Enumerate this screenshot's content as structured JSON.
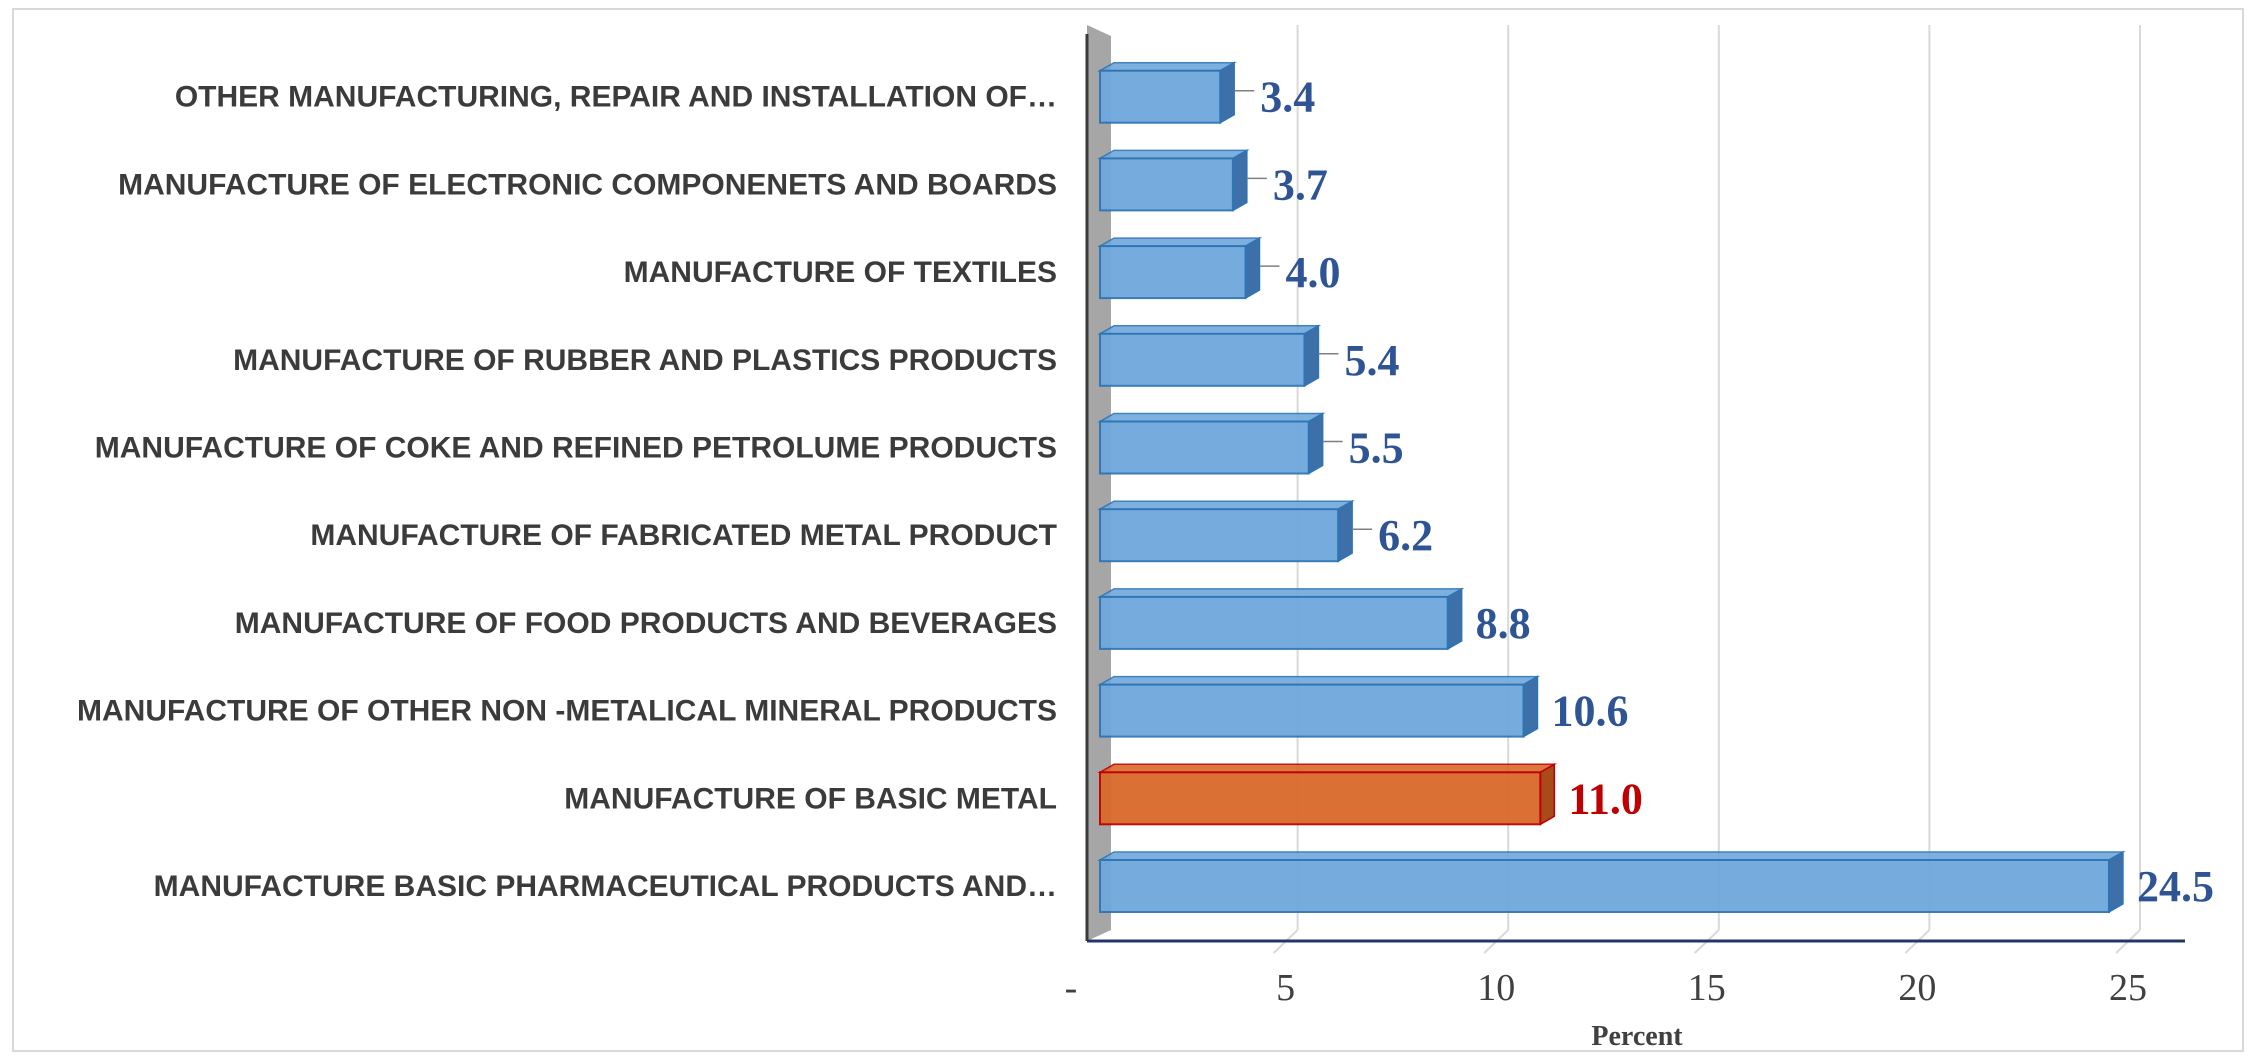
{
  "chart_data": {
    "type": "bar",
    "orientation": "horizontal",
    "style": "3d",
    "categories": [
      "MANUFACTURE BASIC PHARMACEUTICAL PRODUCTS AND…",
      "MANUFACTURE OF BASIC METAL",
      "MANUFACTURE OF OTHER NON -METALICAL MINERAL PRODUCTS",
      "MANUFACTURE OF FOOD PRODUCTS AND BEVERAGES",
      "MANUFACTURE OF FABRICATED METAL PRODUCT",
      "MANUFACTURE OF COKE AND REFINED PETROLUME PRODUCTS",
      "MANUFACTURE OF RUBBER AND PLASTICS PRODUCTS",
      "MANUFACTURE OF TEXTILES",
      "MANUFACTURE OF ELECTRONIC COMPONENETS AND BOARDS",
      "OTHER MANUFACTURING, REPAIR AND INSTALLATION OF…"
    ],
    "values": [
      24.5,
      11.0,
      10.6,
      8.8,
      6.2,
      5.5,
      5.4,
      4.0,
      3.7,
      3.4
    ],
    "value_labels": [
      "24.5",
      "11.0",
      "10.6",
      "8.8",
      "6.2",
      "5.5",
      "5.4",
      "4.0",
      "3.7",
      "3.4"
    ],
    "highlight_index": 1,
    "xlabel": "Percent",
    "xlim": [
      0,
      25
    ],
    "x_ticks": [
      0,
      5,
      10,
      15,
      20,
      25
    ],
    "x_tick_labels": [
      "-",
      "5",
      "10",
      "15",
      "20",
      "25"
    ],
    "grid": true,
    "legend": "none",
    "colors": {
      "bar": "#6fa8dc",
      "bar_edge": "#2e75b6",
      "bar_side": "#3d6fa8",
      "highlight": "#d9692a",
      "highlight_edge": "#c00000",
      "highlight_side": "#a84b19",
      "label": "#2f5496",
      "highlight_label": "#c00000",
      "axis": "#1f3864",
      "grid": "#d9d9d9",
      "wall": "#a6a6a6"
    }
  }
}
